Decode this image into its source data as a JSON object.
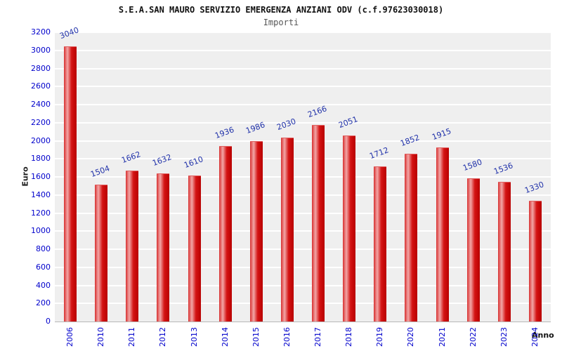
{
  "title": "S.E.A.SAN MAURO SERVIZIO EMERGENZA ANZIANI ODV (c.f.97623030018)",
  "subtitle": "Importi",
  "chart_data": {
    "type": "bar",
    "title": "S.E.A.SAN MAURO SERVIZIO EMERGENZA ANZIANI ODV (c.f.97623030018)",
    "subtitle": "Importi",
    "categories": [
      "2006",
      "2010",
      "2011",
      "2012",
      "2013",
      "2014",
      "2015",
      "2016",
      "2017",
      "2018",
      "2019",
      "2020",
      "2021",
      "2022",
      "2023",
      "2024"
    ],
    "values": [
      3040,
      1504,
      1662,
      1632,
      1610,
      1936,
      1986,
      2030,
      2166,
      2051,
      1712,
      1852,
      1915,
      1580,
      1536,
      1330
    ],
    "xlabel": "Anno",
    "ylabel": "Euro",
    "ylim": [
      0,
      3200
    ],
    "ytick_step": 200,
    "grid": true,
    "legend_position": "none",
    "bar_color": "#cc0000",
    "value_label_color": "#2233aa",
    "tick_label_color": "#0000cc",
    "plot_background": "#efefef"
  }
}
